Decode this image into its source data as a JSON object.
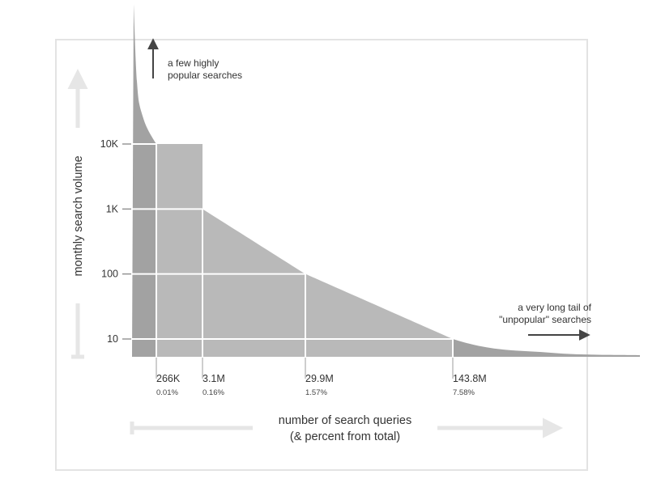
{
  "chart_data": {
    "type": "area",
    "title": "",
    "xlabel": [
      "number of search queries",
      "(& percent from total)"
    ],
    "ylabel": "monthly search volume",
    "y_scale": "log",
    "y_ticks": [
      "10K",
      "1K",
      "100",
      "10"
    ],
    "y_tick_values": [
      10000,
      1000,
      100,
      10
    ],
    "markers": [
      {
        "volume": 10000,
        "queries": "266K",
        "percent": "0.01%"
      },
      {
        "volume": 1000,
        "queries": "3.1M",
        "percent": "0.16%"
      },
      {
        "volume": 100,
        "queries": "29.9M",
        "percent": "1.57%"
      },
      {
        "volume": 10,
        "queries": "143.8M",
        "percent": "7.58%"
      }
    ],
    "annotations": {
      "head": [
        "a few highly",
        "popular searches"
      ],
      "tail": [
        "a very long tail of",
        "\"unpopular\" searches"
      ]
    },
    "colors": {
      "dark": "#a2a2a2",
      "light": "#b9b9b9",
      "gridline": "#ffffff",
      "arrow": "#e6e6e6",
      "annotation_arrow": "#444444"
    }
  }
}
